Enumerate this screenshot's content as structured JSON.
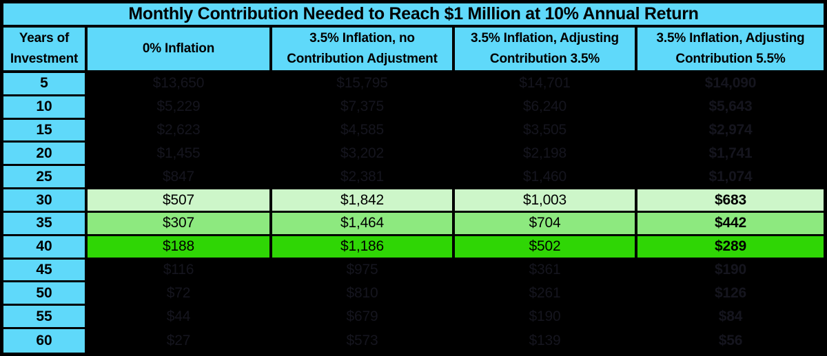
{
  "title": "Monthly Contribution Needed to Reach $1 Million at 10% Annual Return",
  "headers": [
    {
      "lines": [
        "Years of",
        "Investment"
      ]
    },
    {
      "lines": [
        "0% Inflation"
      ]
    },
    {
      "lines": [
        "3.5% Inflation, no",
        "Contribution Adjustment"
      ]
    },
    {
      "lines": [
        "3.5% Inflation, Adjusting",
        "Contribution 3.5%"
      ]
    },
    {
      "lines": [
        "3.5% Inflation, Adjusting",
        "Contribution 5.5%"
      ]
    }
  ],
  "rows": [
    {
      "years": "5",
      "values": [
        "$13,650",
        "$15,795",
        "$14,701",
        "$14,090"
      ],
      "highlight": "dark"
    },
    {
      "years": "10",
      "values": [
        "$5,229",
        "$7,375",
        "$6,240",
        "$5,643"
      ],
      "highlight": "dark"
    },
    {
      "years": "15",
      "values": [
        "$2,623",
        "$4,585",
        "$3,505",
        "$2,974"
      ],
      "highlight": "dark"
    },
    {
      "years": "20",
      "values": [
        "$1,455",
        "$3,202",
        "$2,198",
        "$1,741"
      ],
      "highlight": "dark"
    },
    {
      "years": "25",
      "values": [
        "$847",
        "$2,381",
        "$1,460",
        "$1,074"
      ],
      "highlight": "dark"
    },
    {
      "years": "30",
      "values": [
        "$507",
        "$1,842",
        "$1,003",
        "$683"
      ],
      "highlight": "pale"
    },
    {
      "years": "35",
      "values": [
        "$307",
        "$1,464",
        "$704",
        "$442"
      ],
      "highlight": "mid"
    },
    {
      "years": "40",
      "values": [
        "$188",
        "$1,186",
        "$502",
        "$289"
      ],
      "highlight": "bright"
    },
    {
      "years": "45",
      "values": [
        "$116",
        "$975",
        "$361",
        "$190"
      ],
      "highlight": "dark"
    },
    {
      "years": "50",
      "values": [
        "$72",
        "$810",
        "$261",
        "$126"
      ],
      "highlight": "dark"
    },
    {
      "years": "55",
      "values": [
        "$44",
        "$679",
        "$190",
        "$84"
      ],
      "highlight": "dark"
    },
    {
      "years": "60",
      "values": [
        "$27",
        "$573",
        "$139",
        "$56"
      ],
      "highlight": "dark"
    }
  ],
  "colors": {
    "cyan": "#5FD9FA",
    "row_30_pale_green": "#CDF6C9",
    "row_35_light_green": "#8DE97F",
    "row_40_bright_green": "#2FD605",
    "dark_row_background": "#000000",
    "dark_row_text": "#15151E",
    "border": "#000000"
  },
  "chart_data": {
    "type": "table",
    "title": "Monthly Contribution Needed to Reach $1 Million at 10% Annual Return",
    "categories": [
      5,
      10,
      15,
      20,
      25,
      30,
      35,
      40,
      45,
      50,
      55,
      60
    ],
    "xlabel": "Years of Investment",
    "series": [
      {
        "name": "0% Inflation",
        "values": [
          13650,
          5229,
          2623,
          1455,
          847,
          507,
          307,
          188,
          116,
          72,
          44,
          27
        ]
      },
      {
        "name": "3.5% Inflation, no Contribution Adjustment",
        "values": [
          15795,
          7375,
          4585,
          3202,
          2381,
          1842,
          1464,
          1186,
          975,
          810,
          679,
          573
        ]
      },
      {
        "name": "3.5% Inflation, Adjusting Contribution 3.5%",
        "values": [
          14701,
          6240,
          3505,
          2198,
          1460,
          1003,
          704,
          502,
          361,
          261,
          190,
          139
        ]
      },
      {
        "name": "3.5% Inflation, Adjusting Contribution 5.5%",
        "values": [
          14090,
          5643,
          2974,
          1741,
          1074,
          683,
          442,
          289,
          190,
          126,
          84,
          56
        ]
      }
    ],
    "highlighted_rows_years": [
      30,
      35,
      40
    ],
    "legend_position": "none",
    "grid": true
  }
}
